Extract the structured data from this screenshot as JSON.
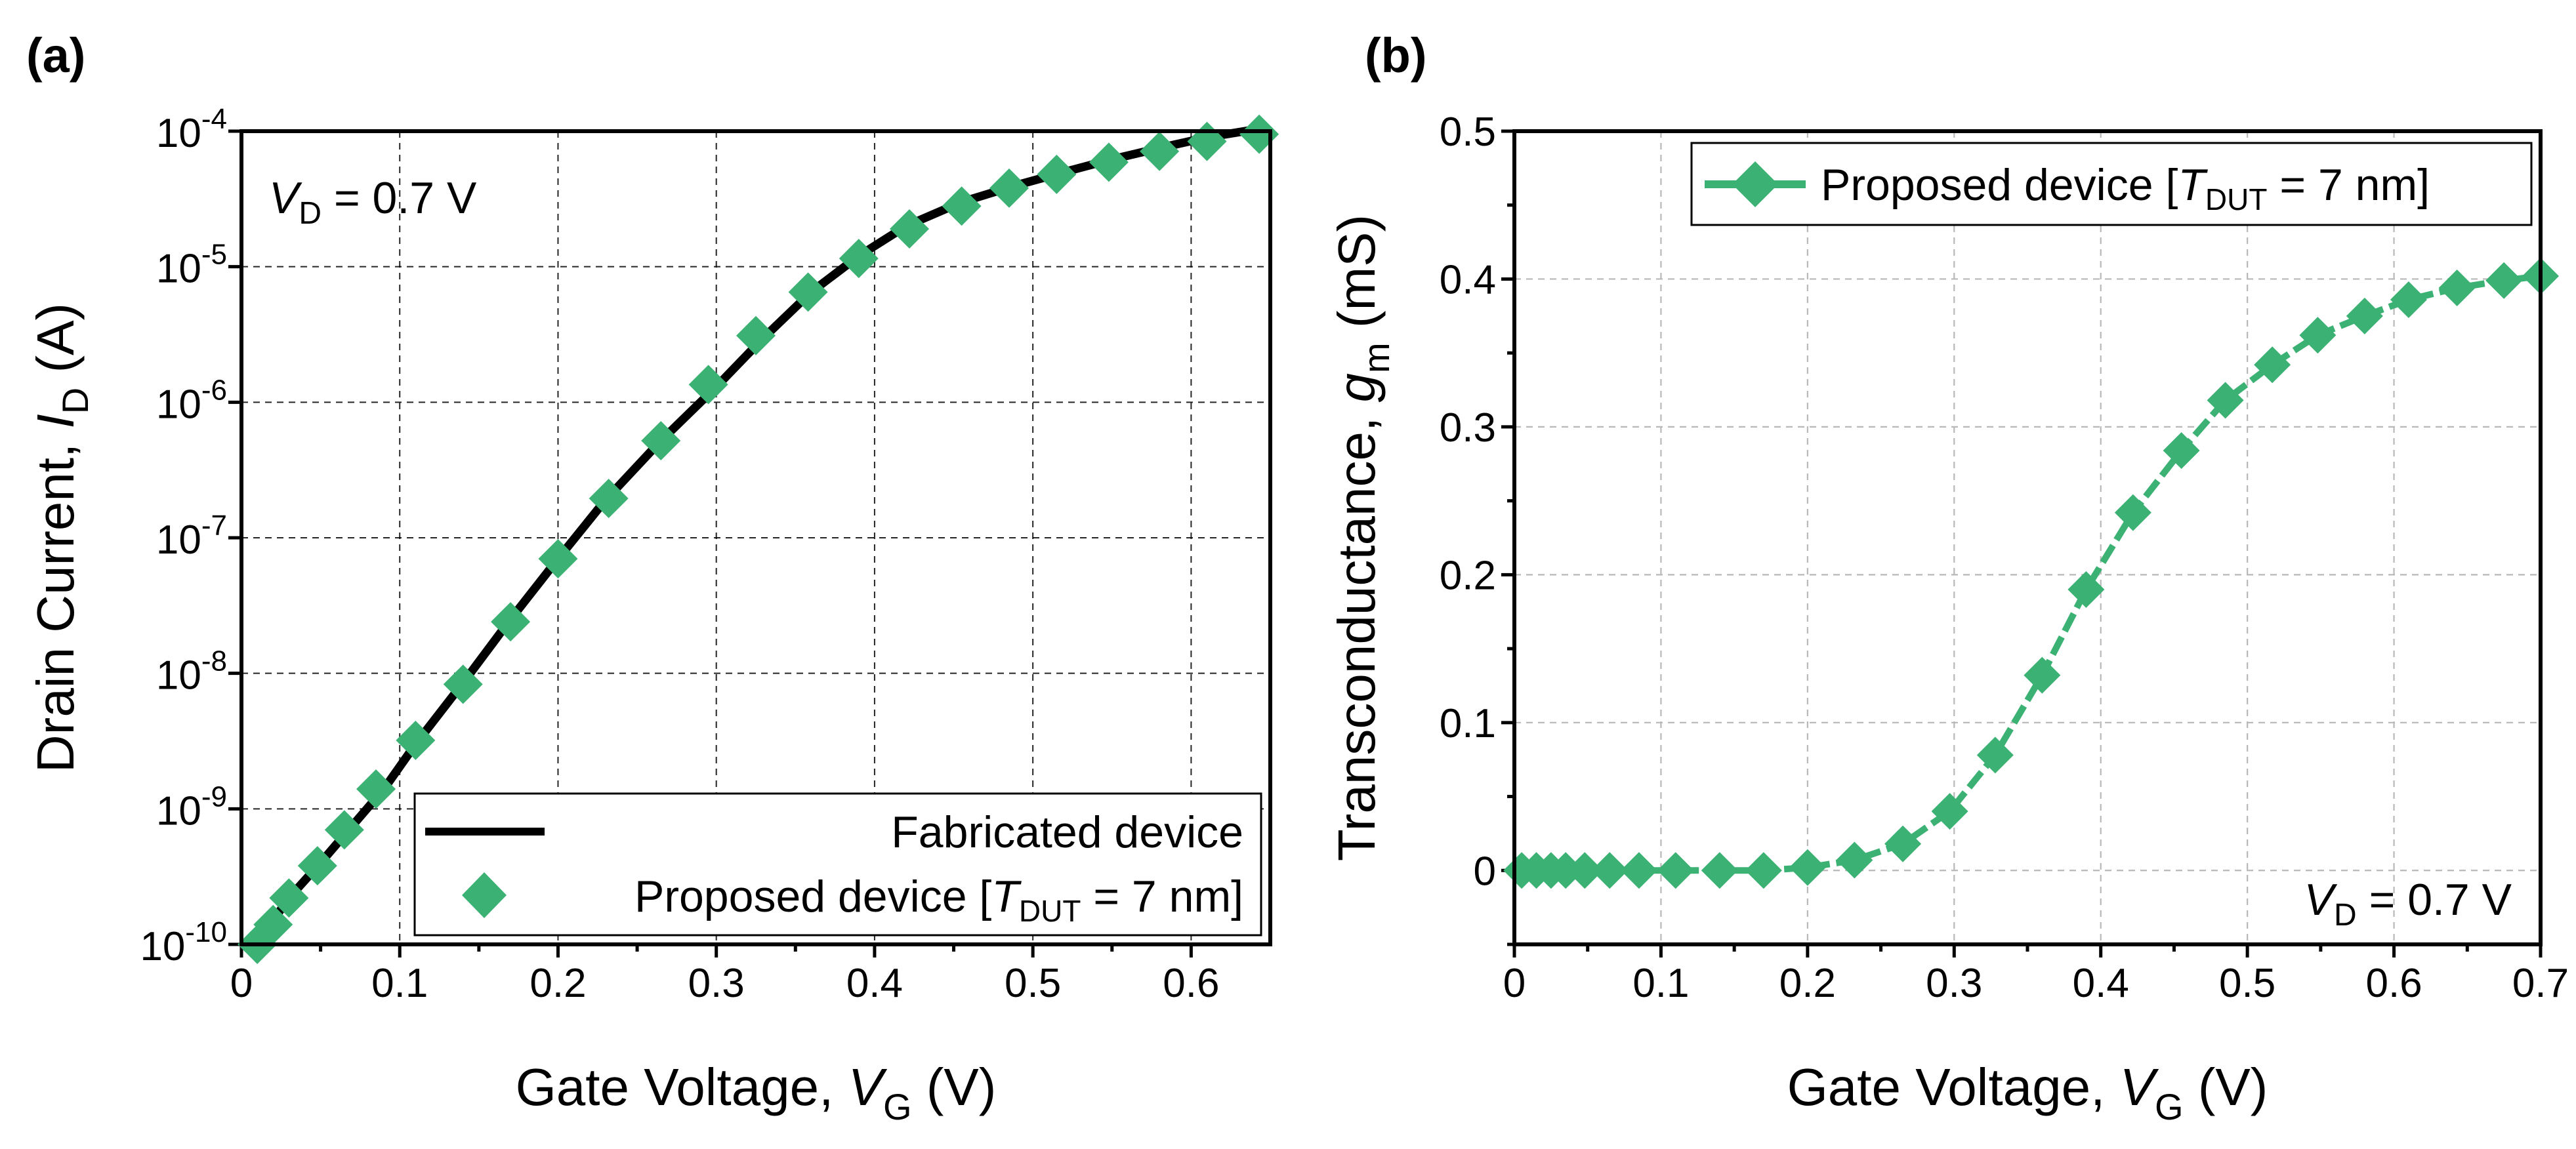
{
  "colors": {
    "green": "#3bb273",
    "black": "#000000"
  },
  "chart_data": [
    {
      "panel_label": "(a)",
      "type": "line",
      "yscale": "log",
      "xlabel": "Gate Voltage,",
      "xlabel_var": "V",
      "xlabel_sub": "G",
      "xlabel_unit": "(V)",
      "ylabel": "Drain Current,",
      "ylabel_var": "I",
      "ylabel_sub": "D",
      "ylabel_unit": "(A)",
      "xlim": [
        0,
        0.65
      ],
      "ylim": [
        1e-10,
        0.0001
      ],
      "xticks": [
        0,
        0.1,
        0.2,
        0.3,
        0.4,
        0.5,
        0.6
      ],
      "xtick_labels": [
        "0",
        "0.1",
        "0.2",
        "0.3",
        "0.4",
        "0.5",
        "0.6"
      ],
      "ytick_mantissa": "10",
      "ytick_exponents": [
        "-10",
        "-9",
        "-8",
        "-7",
        "-6",
        "-5",
        "-4"
      ],
      "grid": true,
      "annotation": {
        "var": "V",
        "sub": "D",
        "text": "= 0.7 V"
      },
      "legend": {
        "placement": "bottom-right",
        "fabricated": "Fabricated device",
        "proposed_prefix": "Proposed device [",
        "proposed_var": "T",
        "proposed_sub": "DUT",
        "proposed_suffix": "= 7 nm]"
      },
      "series": [
        {
          "name": "Fabricated device",
          "style": "line",
          "color": "#000000",
          "x": [
            0.01,
            0.02,
            0.03,
            0.05,
            0.07,
            0.09,
            0.11,
            0.14,
            0.17,
            0.2,
            0.23,
            0.265,
            0.3,
            0.33,
            0.36,
            0.39,
            0.42,
            0.455,
            0.49,
            0.52,
            0.55,
            0.58,
            0.61,
            0.645
          ],
          "y": [
            1e-10,
            1.5e-10,
            2.2e-10,
            4e-10,
            7.5e-10,
            1.4e-09,
            3e-09,
            8.5e-09,
            2.5e-08,
            7e-08,
            1.9e-07,
            5.2e-07,
            1.3e-06,
            3e-06,
            6.5e-06,
            1.2e-05,
            2e-05,
            3e-05,
            4e-05,
            5e-05,
            6.2e-05,
            7.5e-05,
            9e-05,
            0.000105
          ]
        },
        {
          "name": "Proposed device [T_DUT = 7 nm]",
          "style": "marker",
          "marker": "diamond",
          "color": "#3bb273",
          "x": [
            0.01,
            0.02,
            0.03,
            0.048,
            0.065,
            0.085,
            0.11,
            0.14,
            0.17,
            0.2,
            0.232,
            0.265,
            0.295,
            0.325,
            0.358,
            0.39,
            0.422,
            0.455,
            0.485,
            0.515,
            0.548,
            0.58,
            0.61,
            0.643
          ],
          "y": [
            1e-10,
            1.4e-10,
            2.2e-10,
            3.8e-10,
            7e-10,
            1.4e-09,
            3.2e-09,
            8.3e-09,
            2.4e-08,
            7e-08,
            1.95e-07,
            5.2e-07,
            1.35e-06,
            3.1e-06,
            6.5e-06,
            1.15e-05,
            1.9e-05,
            2.8e-05,
            3.8e-05,
            4.8e-05,
            5.9e-05,
            7.1e-05,
            8.4e-05,
            9.5e-05
          ]
        }
      ]
    },
    {
      "panel_label": "(b)",
      "type": "line",
      "xlabel": "Gate Voltage,",
      "xlabel_var": "V",
      "xlabel_sub": "G",
      "xlabel_unit": "(V)",
      "ylabel": "Transconductance,",
      "ylabel_var": "g",
      "ylabel_sub": "m",
      "ylabel_unit": "(mS)",
      "xlim": [
        0,
        0.7
      ],
      "ylim": [
        -0.05,
        0.5
      ],
      "xticks": [
        0,
        0.1,
        0.2,
        0.3,
        0.4,
        0.5,
        0.6,
        0.7
      ],
      "xtick_labels": [
        "0",
        "0.1",
        "0.2",
        "0.3",
        "0.4",
        "0.5",
        "0.6",
        "0.7"
      ],
      "yticks": [
        0,
        0.1,
        0.2,
        0.3,
        0.4,
        0.5
      ],
      "ytick_labels": [
        "0",
        "0.1",
        "0.2",
        "0.3",
        "0.4",
        "0.5"
      ],
      "grid": true,
      "annotation": {
        "var": "V",
        "sub": "D",
        "text": "= 0.7 V"
      },
      "legend": {
        "placement": "top-right",
        "proposed_prefix": "Proposed device [",
        "proposed_var": "T",
        "proposed_sub": "DUT",
        "proposed_suffix": "= 7 nm]"
      },
      "series": [
        {
          "name": "Proposed device [T_DUT = 7 nm]",
          "style": "line+marker",
          "marker": "diamond",
          "color": "#3bb273",
          "x": [
            0.005,
            0.015,
            0.025,
            0.035,
            0.048,
            0.065,
            0.085,
            0.11,
            0.14,
            0.17,
            0.2,
            0.232,
            0.265,
            0.297,
            0.328,
            0.36,
            0.39,
            0.422,
            0.455,
            0.485,
            0.517,
            0.548,
            0.58,
            0.61,
            0.643,
            0.675,
            0.7
          ],
          "y": [
            0,
            0,
            0,
            0,
            0,
            0,
            0,
            0,
            0,
            0,
            0.002,
            0.007,
            0.018,
            0.04,
            0.078,
            0.132,
            0.19,
            0.242,
            0.284,
            0.318,
            0.342,
            0.362,
            0.375,
            0.386,
            0.394,
            0.399,
            0.402
          ]
        }
      ]
    }
  ]
}
